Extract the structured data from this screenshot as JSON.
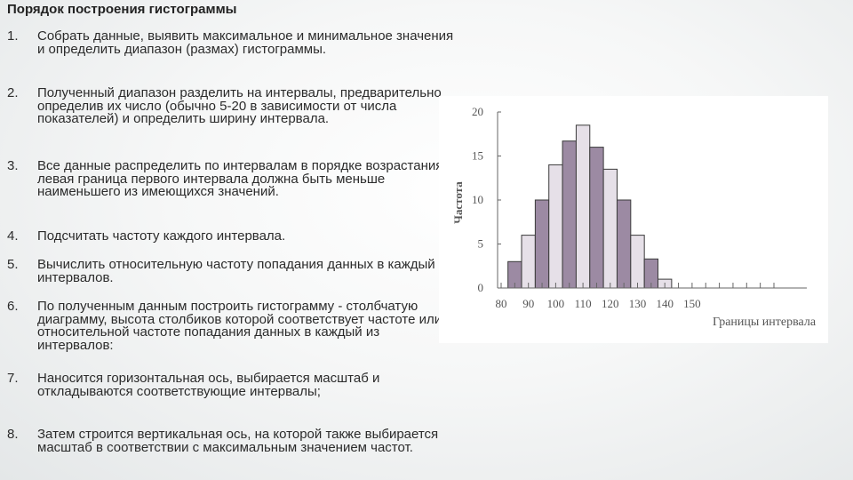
{
  "slide": {
    "title": "Порядок построения гистограммы",
    "steps": [
      {
        "num": "1.",
        "text": "Собрать данные, выявить максимальное и минимальное значения и определить диапазон (размах) гистограммы."
      },
      {
        "num": "2.",
        "text": "Полученный диапазон разделить на интервалы, предварительно определив их число (обычно 5-20 в зависимости от числа показателей) и определить ширину интервала."
      },
      {
        "num": "3.",
        "text": "Все данные распределить по интервалам в порядке возрастания: левая граница первого интервала должна быть меньше наименьшего из имеющихся значений."
      },
      {
        "num": "4.",
        "text": "Подсчитать частоту каждого интервала."
      },
      {
        "num": "5.",
        "text": "Вычислить относительную частоту попадания данных в каждый из интервалов."
      },
      {
        "num": "6.",
        "text": "По полученным данным построить гистограмму - столбчатую диаграмму, высота столбиков которой соответствует частоте или относительной частоте попадания данных в каждый из интервалов:"
      },
      {
        "num": "7.",
        "text": "Наносится горизонтальная ось, выбирается масштаб и откладываются соответствующие интервалы;"
      },
      {
        "num": "8.",
        "text": "Затем строится вертикальная ось, на которой также выбирается масштаб в соответствии с максимальным значением частот."
      }
    ]
  },
  "chart_data": {
    "type": "bar",
    "title": "",
    "xlabel": "Границы интервала",
    "ylabel": "Частота",
    "ylim": [
      0,
      20
    ],
    "yticks": [
      0,
      5,
      10,
      15,
      20
    ],
    "xticks": [
      80,
      90,
      100,
      110,
      120,
      130,
      140,
      150
    ],
    "bin_width": 5,
    "bins": [
      {
        "start": 82.5,
        "end": 87.5,
        "value": 3
      },
      {
        "start": 87.5,
        "end": 92.5,
        "value": 6
      },
      {
        "start": 92.5,
        "end": 97.5,
        "value": 10
      },
      {
        "start": 97.5,
        "end": 102.5,
        "value": 14
      },
      {
        "start": 102.5,
        "end": 107.5,
        "value": 16.7
      },
      {
        "start": 107.5,
        "end": 112.5,
        "value": 18.5
      },
      {
        "start": 112.5,
        "end": 117.5,
        "value": 16
      },
      {
        "start": 117.5,
        "end": 122.5,
        "value": 13.5
      },
      {
        "start": 122.5,
        "end": 127.5,
        "value": 10
      },
      {
        "start": 127.5,
        "end": 132.5,
        "value": 6
      },
      {
        "start": 132.5,
        "end": 137.5,
        "value": 3.3
      },
      {
        "start": 137.5,
        "end": 142.5,
        "value": 1
      }
    ],
    "colors": {
      "dark": "#9c8aa3",
      "light": "#e6e0e8",
      "stroke": "#3a3a3a"
    },
    "grid": false
  }
}
